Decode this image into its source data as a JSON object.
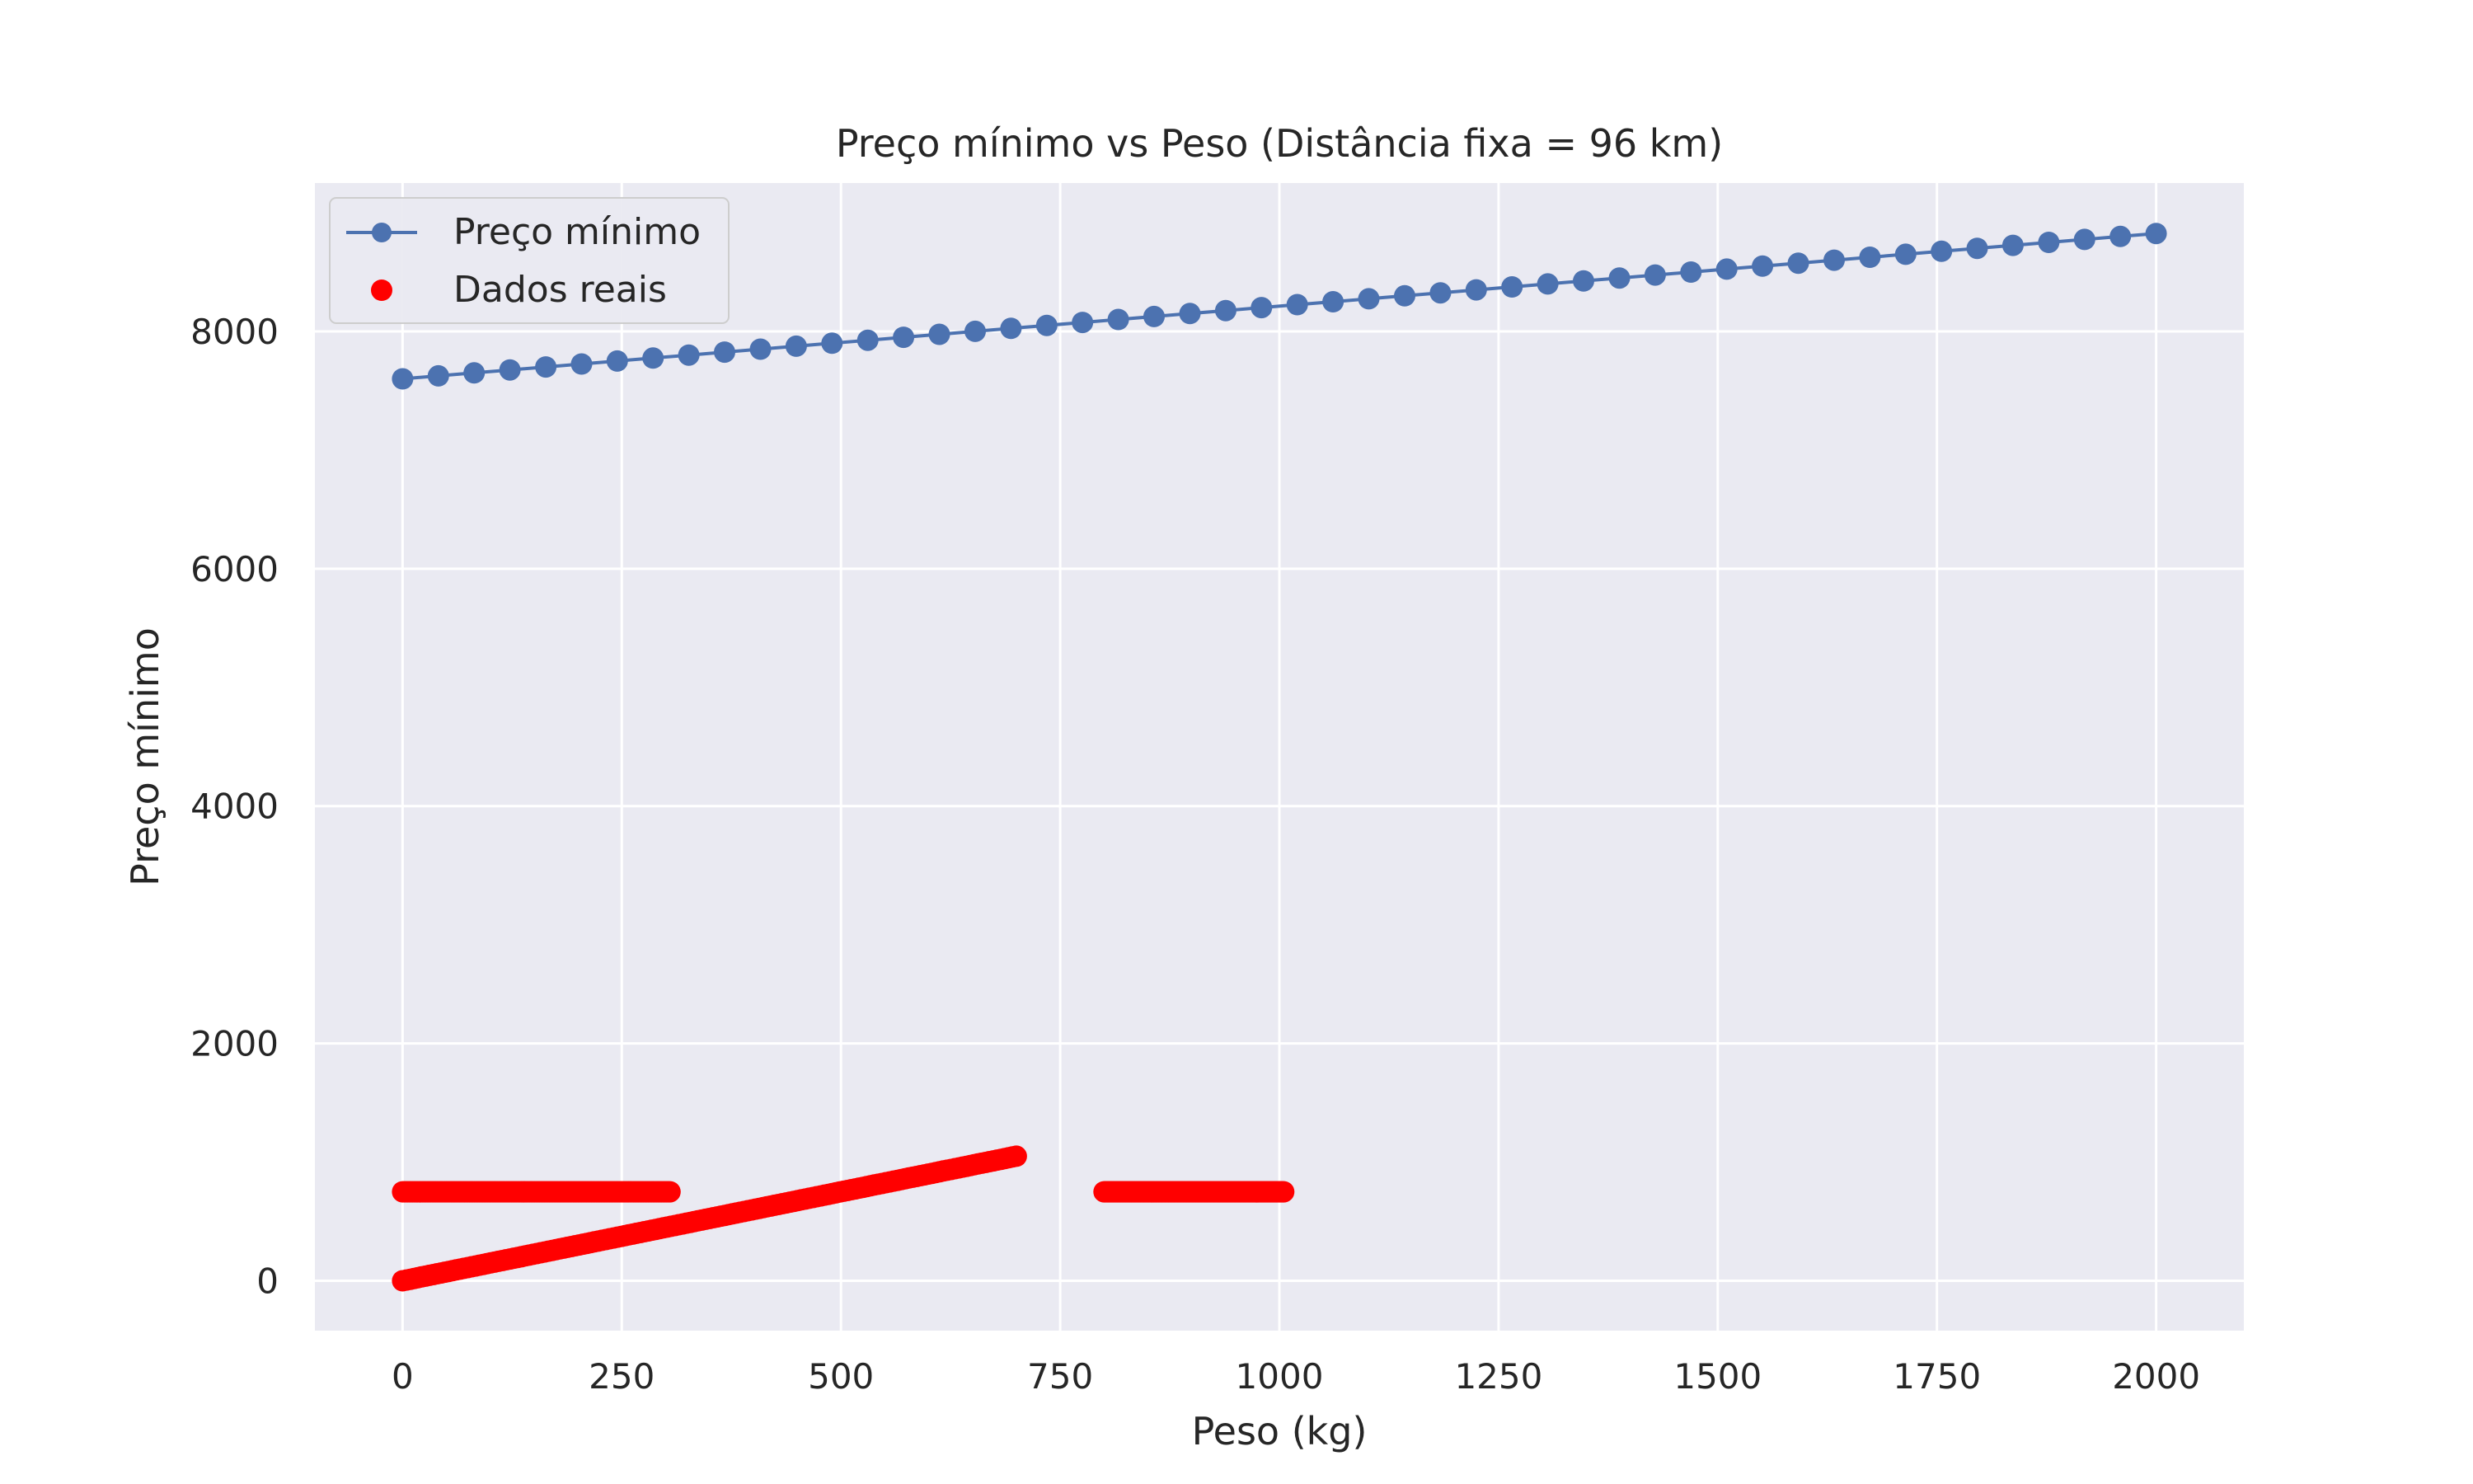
{
  "chart_data": {
    "type": "scatter",
    "title": "Preço mínimo vs Peso (Distância fixa = 96 km)",
    "xlabel": "Peso (kg)",
    "ylabel": "Preço mínimo",
    "xlim": [
      -100,
      2100
    ],
    "ylim": [
      -420,
      9250
    ],
    "x_ticks": [
      0,
      250,
      500,
      750,
      1000,
      1250,
      1500,
      1750,
      2000
    ],
    "x_tick_labels": [
      "0",
      "250",
      "500",
      "750",
      "1000",
      "1250",
      "1500",
      "1750",
      "2000"
    ],
    "y_ticks": [
      0,
      2000,
      4000,
      6000,
      8000
    ],
    "y_tick_labels": [
      "0",
      "2000",
      "4000",
      "6000",
      "8000"
    ],
    "grid": true,
    "legend_position": "top-left",
    "background": "#eaeaf2",
    "series": [
      {
        "name": "Preço mínimo",
        "kind": "line-with-markers",
        "color": "#4c72b0",
        "x": [
          0,
          40.8,
          81.6,
          122.4,
          163.3,
          204.1,
          244.9,
          285.7,
          326.5,
          367.3,
          408.2,
          449.0,
          489.8,
          530.6,
          571.4,
          612.2,
          653.1,
          693.9,
          734.7,
          775.5,
          816.3,
          857.1,
          898.0,
          938.8,
          979.6,
          1020.4,
          1061.2,
          1102.0,
          1142.9,
          1183.7,
          1224.5,
          1265.3,
          1306.1,
          1346.9,
          1387.8,
          1428.6,
          1469.4,
          1510.2,
          1551.0,
          1591.8,
          1632.7,
          1673.5,
          1714.3,
          1755.1,
          1795.9,
          1836.7,
          1877.6,
          1918.4,
          1959.2,
          2000
        ],
        "y": [
          7600,
          7625,
          7650,
          7675,
          7700,
          7725,
          7750,
          7775,
          7800,
          7825,
          7850,
          7875,
          7900,
          7925,
          7950,
          7975,
          8000,
          8025,
          8050,
          8075,
          8100,
          8125,
          8150,
          8175,
          8200,
          8225,
          8250,
          8275,
          8300,
          8325,
          8350,
          8375,
          8400,
          8425,
          8450,
          8475,
          8500,
          8525,
          8550,
          8575,
          8600,
          8625,
          8650,
          8675,
          8700,
          8725,
          8750,
          8775,
          8800,
          8825
        ]
      },
      {
        "name": "Dados reais",
        "kind": "scatter",
        "color": "#ff0000",
        "segments": [
          {
            "x_start": 0,
            "x_end": 305,
            "y_start": 750,
            "y_end": 750
          },
          {
            "x_start": 0,
            "x_end": 700,
            "y_start": 0,
            "y_end": 1050
          },
          {
            "x_start": 800,
            "x_end": 1005,
            "y_start": 750,
            "y_end": 750
          }
        ]
      }
    ]
  }
}
